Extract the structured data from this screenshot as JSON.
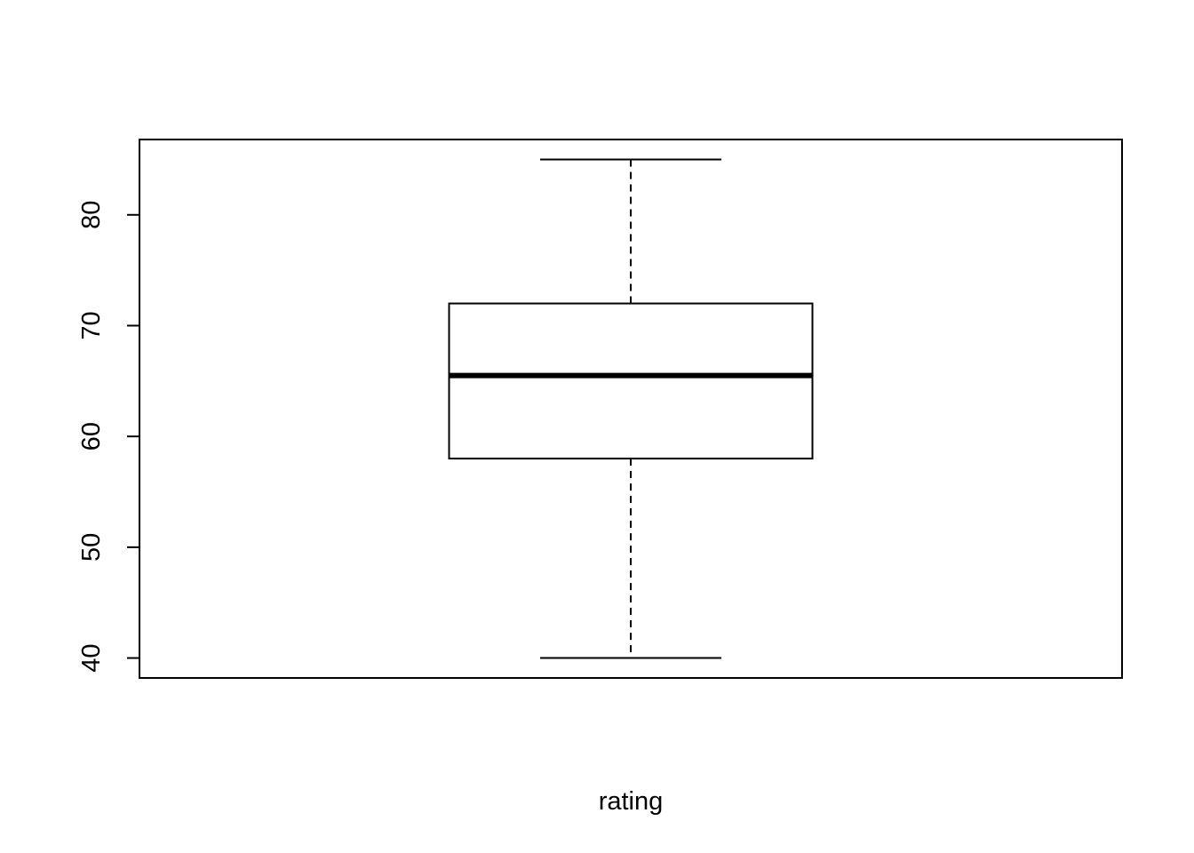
{
  "chart_data": {
    "type": "boxplot",
    "title": "",
    "xlabel": "rating",
    "ylabel": "",
    "ylim": [
      38.2,
      86.8
    ],
    "yticks": [
      40,
      50,
      60,
      70,
      80
    ],
    "ytick_labels": [
      "40",
      "50",
      "60",
      "70",
      "80"
    ],
    "grid": false,
    "legend": "none",
    "series": [
      {
        "min": 40,
        "q1": 58,
        "median": 65.5,
        "q3": 72,
        "max": 85
      }
    ],
    "colors": {
      "stroke": "#000000",
      "box_fill": "#ffffff",
      "background": "#ffffff"
    }
  }
}
